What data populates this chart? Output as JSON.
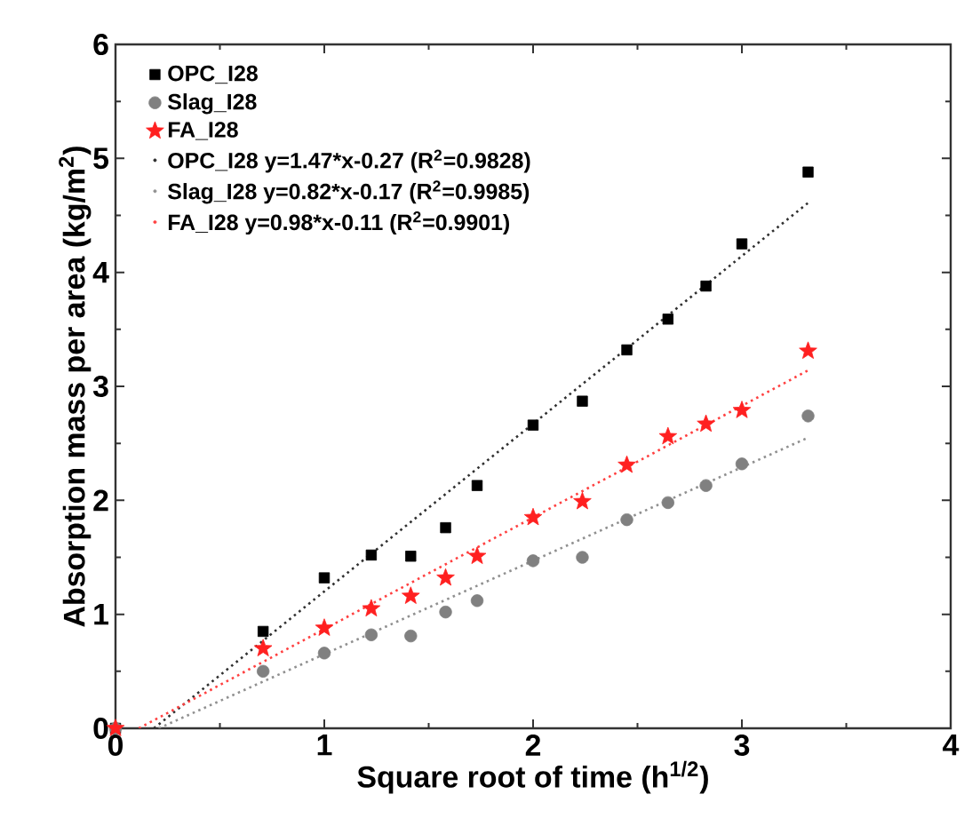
{
  "chart_data": {
    "type": "scatter",
    "xlabel": "Square root of time (h$^{1/2}$)",
    "ylabel": "Absorption mass per area (kg/m$^{2}$)",
    "xlim": [
      0,
      4
    ],
    "xticks": [
      0,
      1,
      2,
      3,
      4
    ],
    "ylim": [
      0,
      6
    ],
    "yticks": [
      0,
      1,
      2,
      3,
      4,
      5,
      6
    ],
    "legend": "top left",
    "grid": false,
    "series": [
      {
        "name": "OPC_I28",
        "marker": "square",
        "color": "#000000",
        "x": [
          0,
          0.707,
          1,
          1.225,
          1.414,
          1.581,
          1.732,
          2,
          2.236,
          2.449,
          2.646,
          2.828,
          3,
          3.317
        ],
        "values": [
          0,
          0.85,
          1.32,
          1.52,
          1.51,
          1.76,
          2.13,
          2.66,
          2.87,
          3.32,
          3.59,
          3.88,
          4.25,
          4.88
        ]
      },
      {
        "name": "Slag_I28",
        "marker": "circle",
        "color": "#808080",
        "x": [
          0,
          0.707,
          1,
          1.225,
          1.414,
          1.581,
          1.732,
          2,
          2.236,
          2.449,
          2.646,
          2.828,
          3,
          3.317
        ],
        "values": [
          0,
          0.5,
          0.66,
          0.82,
          0.81,
          1.02,
          1.12,
          1.47,
          1.5,
          1.83,
          1.98,
          2.13,
          2.32,
          2.74
        ]
      },
      {
        "name": "FA_I28",
        "marker": "star",
        "color": "#ff2020",
        "x": [
          0,
          0.707,
          1,
          1.225,
          1.414,
          1.581,
          1.732,
          2,
          2.236,
          2.449,
          2.646,
          2.828,
          3,
          3.317
        ],
        "values": [
          0,
          0.7,
          0.88,
          1.05,
          1.16,
          1.32,
          1.51,
          1.85,
          1.99,
          2.31,
          2.56,
          2.67,
          2.79,
          3.31
        ]
      },
      {
        "name": "OPC_I28 y=1.47*x-0.27 (R$^{2}$=0.9828)",
        "type": "line",
        "line_style": "dotted",
        "marker": "none",
        "color": "#303030",
        "x": [
          0.184,
          3.317
        ],
        "values": [
          0,
          4.61
        ]
      },
      {
        "name": "Slag_I28 y=0.82*x-0.17 (R$^{2}$=0.9985)",
        "type": "line",
        "line_style": "dotted",
        "marker": "none",
        "color": "#909090",
        "x": [
          0.207,
          3.317
        ],
        "values": [
          0,
          2.55
        ]
      },
      {
        "name": "FA_I28 y=0.98*x-0.11 (R$^{2}$=0.9901)",
        "type": "line",
        "line_style": "dotted",
        "marker": "none",
        "color": "#ff4040",
        "x": [
          0.112,
          3.317
        ],
        "values": [
          0,
          3.14
        ]
      }
    ]
  }
}
